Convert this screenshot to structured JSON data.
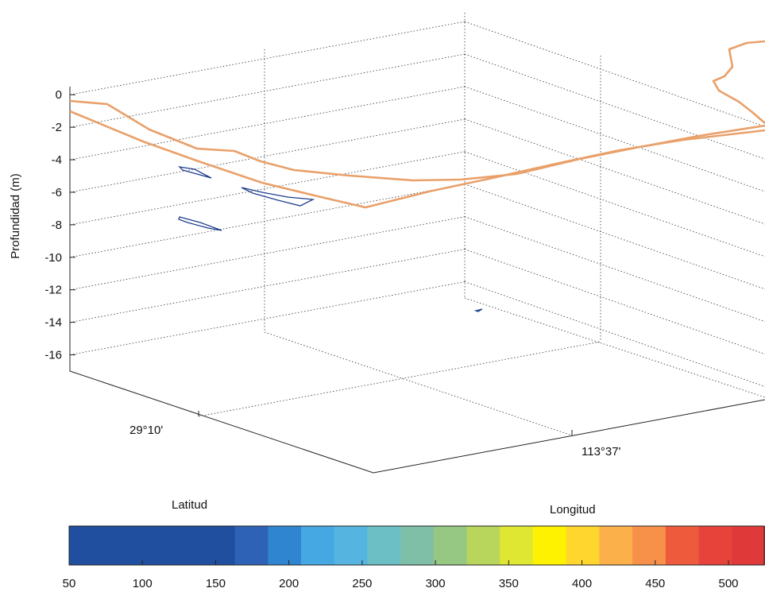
{
  "chart_data": {
    "type": "surface-3d",
    "zlabel": "Profundidad (m)",
    "xlabel": "Latitud",
    "ylabel": "Longitud",
    "z_ticks": [
      0,
      -2,
      -4,
      -6,
      -8,
      -10,
      -12,
      -14,
      -16
    ],
    "zlim": [
      -17,
      0.5
    ],
    "lat_tick": "29°10'",
    "lon_tick": "113°37'",
    "grid": true,
    "colorbar": {
      "placement": "bottom",
      "ticks": [
        50,
        100,
        150,
        200,
        250,
        300,
        350,
        400,
        450,
        500
      ],
      "colors": [
        "#1f4f9e",
        "#1f4f9e",
        "#1f4f9e",
        "#1f4f9e",
        "#1f4f9e",
        "#2e62b6",
        "#2f85cf",
        "#45a8e2",
        "#55b5e0",
        "#6bbfc5",
        "#7fbfa8",
        "#96c783",
        "#b8d65b",
        "#dfe733",
        "#fff200",
        "#ffd62e",
        "#fcb04a",
        "#f7914a",
        "#ee5a3c",
        "#e8433a",
        "#e0393a"
      ]
    },
    "series": [
      {
        "color": "#e9a06a"
      },
      {
        "color": "#1f3f8f"
      }
    ]
  }
}
